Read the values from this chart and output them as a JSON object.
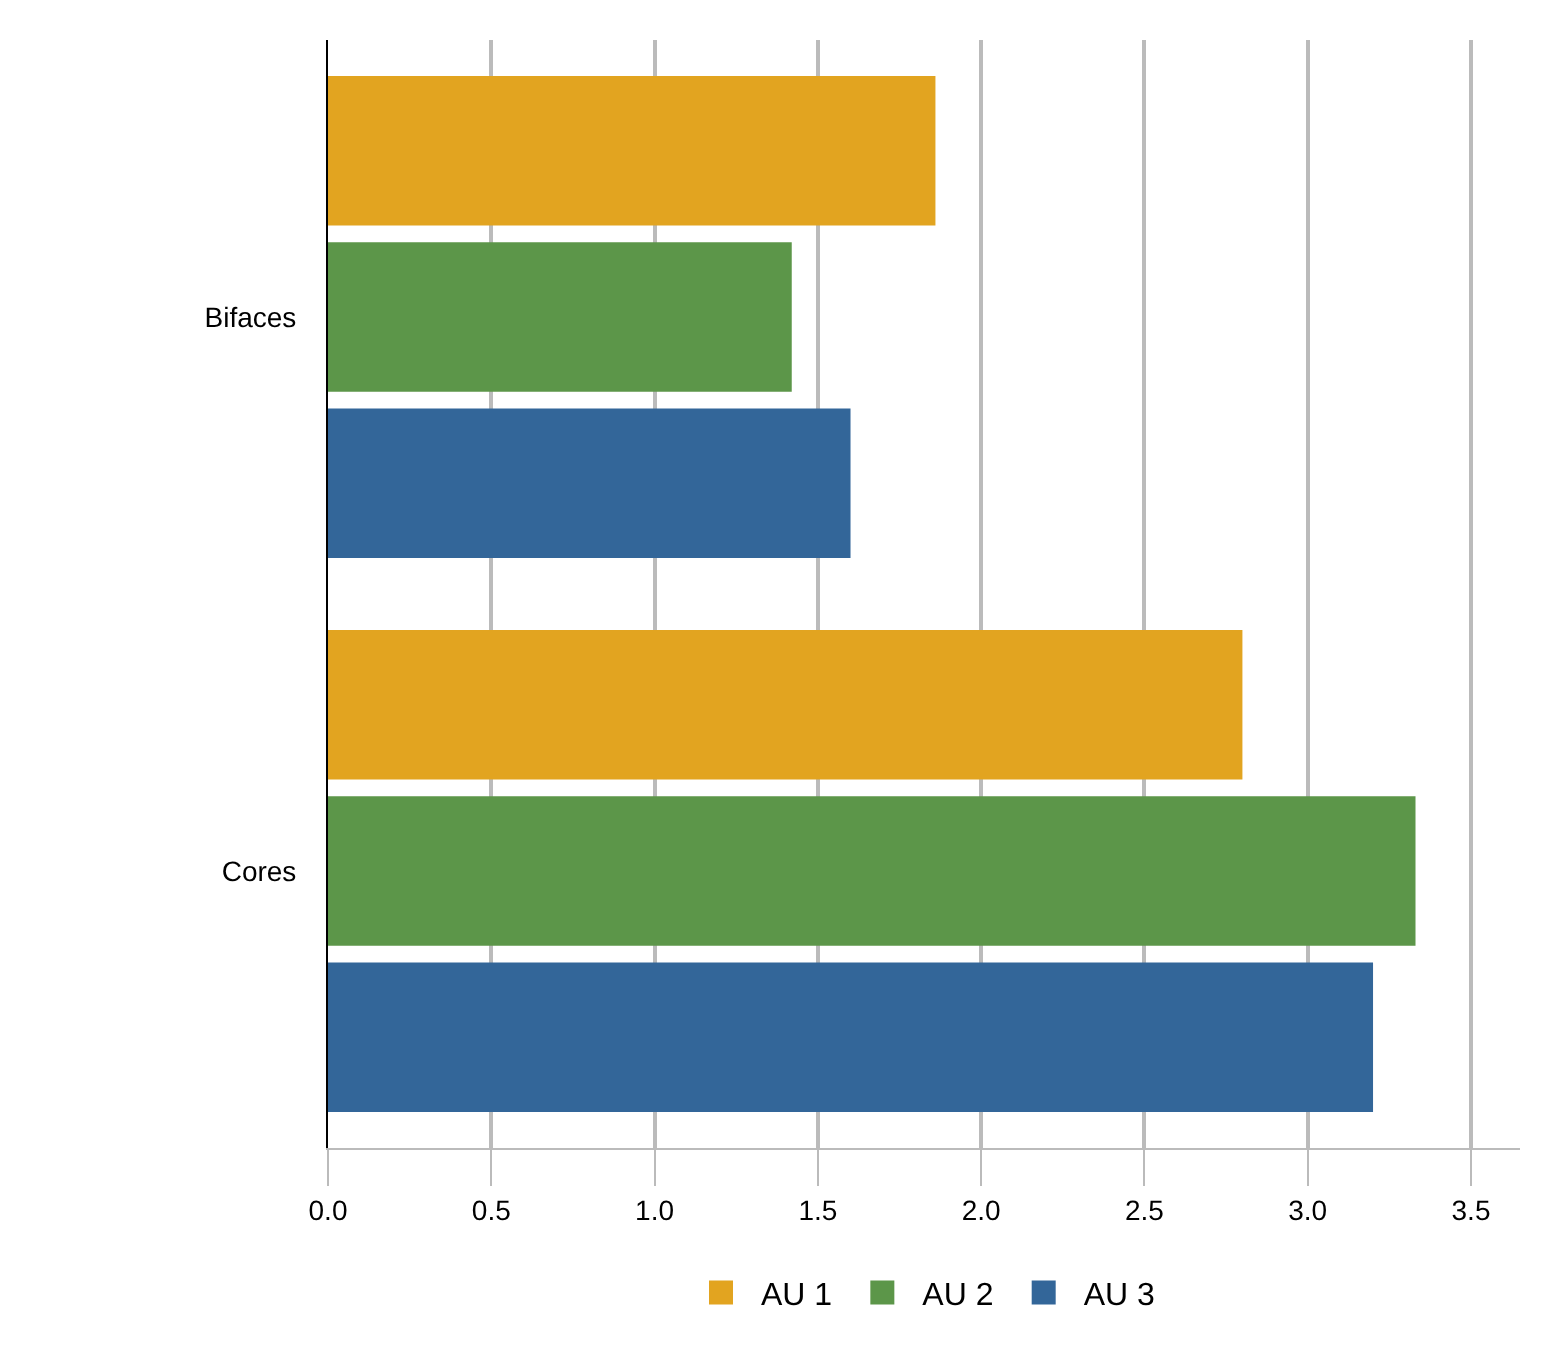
{
  "chart_data": {
    "type": "bar",
    "orientation": "horizontal",
    "categories": [
      "Bifaces",
      "Cores"
    ],
    "series": [
      {
        "name": "AU 1",
        "color": "#e2a420",
        "values": [
          1.86,
          2.8
        ]
      },
      {
        "name": "AU 2",
        "color": "#5c9649",
        "values": [
          1.42,
          3.33
        ]
      },
      {
        "name": "AU 3",
        "color": "#336699",
        "values": [
          1.6,
          3.2
        ]
      }
    ],
    "xlim": [
      0,
      3.65
    ],
    "xticks": [
      {
        "value": 0,
        "label": "0.0"
      },
      {
        "value": 0.5,
        "label": "0.5"
      },
      {
        "value": 1,
        "label": "1.0"
      },
      {
        "value": 1.5,
        "label": "1.5"
      },
      {
        "value": 2,
        "label": "2.0"
      },
      {
        "value": 2.5,
        "label": "2.5"
      },
      {
        "value": 3,
        "label": "3.0"
      },
      {
        "value": 3.5,
        "label": "3.5"
      }
    ],
    "grid": "x",
    "legend": "bottom"
  }
}
